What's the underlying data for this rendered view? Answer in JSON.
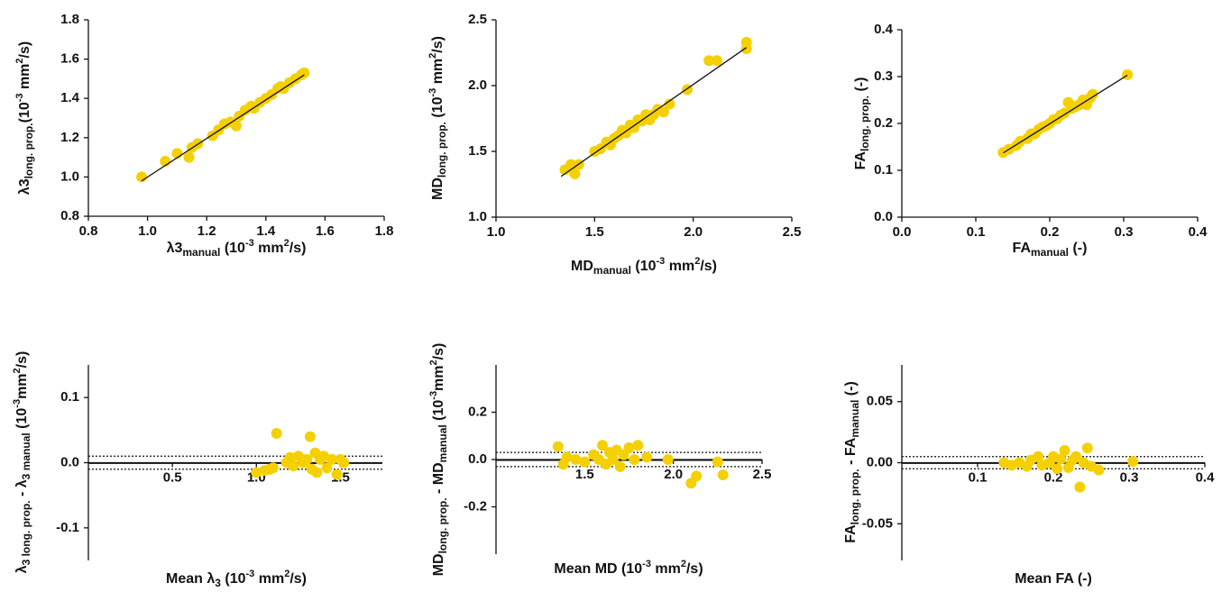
{
  "chart_data": [
    {
      "type": "scatter",
      "color": "#f5d000",
      "x_label": [
        "λ3",
        "manual",
        " (10",
        "-3",
        " mm",
        "2",
        "/s)"
      ],
      "y_label": [
        "λ3",
        "long. prop.",
        "(10",
        "-3",
        " mm",
        "2",
        "/s)"
      ],
      "x": [
        0.98,
        1.06,
        1.1,
        1.14,
        1.15,
        1.17,
        1.22,
        1.24,
        1.26,
        1.28,
        1.3,
        1.31,
        1.33,
        1.35,
        1.36,
        1.38,
        1.4,
        1.42,
        1.44,
        1.45,
        1.46,
        1.48,
        1.5,
        1.52,
        1.53
      ],
      "y": [
        1.0,
        1.08,
        1.12,
        1.1,
        1.15,
        1.17,
        1.21,
        1.24,
        1.27,
        1.28,
        1.26,
        1.31,
        1.34,
        1.36,
        1.35,
        1.38,
        1.4,
        1.42,
        1.45,
        1.46,
        1.45,
        1.48,
        1.5,
        1.52,
        1.53
      ],
      "fit_line": {
        "x": [
          0.98,
          1.53
        ],
        "y": [
          0.98,
          1.52
        ]
      },
      "xlim": [
        0.8,
        1.8
      ],
      "ylim": [
        0.8,
        1.8
      ],
      "xticks": [
        0.8,
        {
          "value": 1,
          "label": "1.0"
        },
        1.2,
        1.4,
        1.6,
        1.8
      ],
      "yticks": [
        0.8,
        {
          "value": 1,
          "label": "1.0"
        },
        1.2,
        1.4,
        1.6,
        1.8
      ]
    },
    {
      "type": "scatter",
      "color": "#f5d000",
      "x_label": [
        "MD",
        "manual",
        " (10",
        "-3",
        " mm",
        "2",
        "/s)"
      ],
      "y_label": [
        "MD",
        "long. prop.",
        "  (10",
        "-3",
        " mm",
        "2",
        "/s)"
      ],
      "x": [
        1.35,
        1.38,
        1.4,
        1.42,
        1.5,
        1.53,
        1.56,
        1.58,
        1.6,
        1.62,
        1.64,
        1.66,
        1.68,
        1.7,
        1.72,
        1.74,
        1.76,
        1.78,
        1.8,
        1.82,
        1.85,
        1.88,
        1.97,
        2.08,
        2.12,
        2.27,
        2.27
      ],
      "y": [
        1.36,
        1.4,
        1.33,
        1.4,
        1.5,
        1.52,
        1.57,
        1.55,
        1.6,
        1.62,
        1.66,
        1.64,
        1.7,
        1.68,
        1.74,
        1.73,
        1.78,
        1.74,
        1.78,
        1.82,
        1.8,
        1.86,
        1.97,
        2.19,
        2.19,
        2.33,
        2.28
      ],
      "fit_line": {
        "x": [
          1.33,
          2.27
        ],
        "y": [
          1.31,
          2.29
        ]
      },
      "xlim": [
        1.0,
        2.5
      ],
      "ylim": [
        1.0,
        2.5
      ],
      "xticks": [
        {
          "value": 1,
          "label": "1.0"
        },
        1.5,
        {
          "value": 2,
          "label": "2.0"
        },
        2.5
      ],
      "yticks": [
        {
          "value": 1,
          "label": "1.0"
        },
        1.5,
        {
          "value": 2,
          "label": "2.0"
        },
        2.5
      ]
    },
    {
      "type": "scatter",
      "color": "#f5d000",
      "x_label": [
        "FA",
        "manual",
        " (-)"
      ],
      "y_label": [
        "FA",
        "long. prop.",
        " (-)"
      ],
      "x": [
        0.137,
        0.145,
        0.155,
        0.16,
        0.17,
        0.175,
        0.18,
        0.185,
        0.19,
        0.195,
        0.2,
        0.205,
        0.21,
        0.215,
        0.22,
        0.225,
        0.23,
        0.235,
        0.24,
        0.245,
        0.25,
        0.255,
        0.258,
        0.305
      ],
      "y": [
        0.138,
        0.145,
        0.153,
        0.162,
        0.168,
        0.178,
        0.178,
        0.187,
        0.192,
        0.195,
        0.2,
        0.208,
        0.21,
        0.218,
        0.222,
        0.245,
        0.232,
        0.236,
        0.24,
        0.25,
        0.24,
        0.255,
        0.262,
        0.304
      ],
      "fit_line": {
        "x": [
          0.137,
          0.305
        ],
        "y": [
          0.137,
          0.303
        ]
      },
      "xlim": [
        0,
        0.4
      ],
      "ylim": [
        0,
        0.4
      ],
      "xticks": [
        {
          "value": 0,
          "label": "0.0"
        },
        0.1,
        0.2,
        0.3,
        0.4
      ],
      "yticks": [
        {
          "value": 0,
          "label": "0.0"
        },
        0.1,
        0.2,
        0.3,
        0.4
      ]
    },
    {
      "type": "scatter",
      "color": "#f5d000",
      "x_axis_position": "zero",
      "x_label": [
        "Mean λ",
        "3",
        " (10",
        "-3",
        " mm",
        "2",
        "/s)"
      ],
      "y_label": [
        "λ",
        "3 long. prop.",
        " - λ",
        "3 manual",
        " (10",
        "-3",
        "mm",
        "2",
        "/s)"
      ],
      "x": [
        1.0,
        1.05,
        1.08,
        1.1,
        1.12,
        1.18,
        1.2,
        1.22,
        1.25,
        1.28,
        1.3,
        1.32,
        1.33,
        1.35,
        1.36,
        1.38,
        1.4,
        1.42,
        1.45,
        1.48,
        1.5,
        1.52
      ],
      "y": [
        -0.015,
        -0.012,
        -0.01,
        -0.008,
        0.045,
        0.0,
        0.008,
        -0.005,
        0.01,
        0.0,
        0.005,
        0.04,
        -0.01,
        0.015,
        -0.015,
        0.005,
        0.01,
        -0.008,
        0.005,
        -0.018,
        0.005,
        0.0
      ],
      "hlines": [
        {
          "value": -0.001,
          "style": "solid"
        },
        {
          "value": 0.01,
          "style": "dotted"
        },
        {
          "value": -0.01,
          "style": "dotted"
        }
      ],
      "xlim": [
        0,
        1.75
      ],
      "ylim": [
        -0.15,
        0.15
      ],
      "xticks": [
        0.5,
        {
          "value": 1,
          "label": "1.0"
        },
        1.5
      ],
      "yticks": [
        0.1,
        {
          "value": 0,
          "label": "0.0"
        },
        -0.1
      ]
    },
    {
      "type": "scatter",
      "color": "#f5d000",
      "x_axis_position": "zero",
      "x_label": [
        "Mean MD (10",
        "-3",
        " mm",
        "2",
        "/s)"
      ],
      "y_label": [
        "MD",
        "long. prop.",
        " - MD",
        "manual",
        " (10",
        "-3",
        "mm",
        "2",
        "/s)"
      ],
      "x": [
        1.35,
        1.38,
        1.4,
        1.45,
        1.5,
        1.55,
        1.58,
        1.6,
        1.62,
        1.64,
        1.66,
        1.68,
        1.7,
        1.72,
        1.75,
        1.78,
        1.8,
        1.85,
        1.97,
        2.1,
        2.13,
        2.25,
        2.28
      ],
      "y": [
        0.055,
        -0.02,
        0.01,
        0.0,
        -0.01,
        0.02,
        0.0,
        0.06,
        -0.02,
        0.03,
        0.0,
        0.04,
        -0.03,
        0.02,
        0.05,
        0.0,
        0.06,
        0.01,
        0.0,
        -0.1,
        -0.07,
        -0.01,
        -0.065
      ],
      "hlines": [
        {
          "value": -0.003,
          "style": "solid"
        },
        {
          "value": 0.03,
          "style": "dotted"
        },
        {
          "value": -0.03,
          "style": "dotted"
        }
      ],
      "xlim": [
        1.0,
        2.5
      ],
      "ylim": [
        -0.4,
        0.4
      ],
      "xticks": [
        1.5,
        {
          "value": 2,
          "label": "2.0"
        },
        2.5
      ],
      "yticks": [
        0.2,
        {
          "value": 0,
          "label": "0.0"
        },
        -0.2
      ]
    },
    {
      "type": "scatter",
      "color": "#f5d000",
      "x_axis_position": "zero",
      "x_label": [
        "Mean FA (-)"
      ],
      "y_label": [
        "FA",
        "long. prop.",
        " - FA",
        "manual",
        " (-)"
      ],
      "x": [
        0.135,
        0.145,
        0.155,
        0.165,
        0.17,
        0.18,
        0.185,
        0.195,
        0.2,
        0.205,
        0.21,
        0.215,
        0.22,
        0.225,
        0.23,
        0.235,
        0.24,
        0.245,
        0.25,
        0.26,
        0.305
      ],
      "y": [
        0.0,
        -0.002,
        0.0,
        -0.003,
        0.002,
        0.005,
        -0.002,
        0.0,
        0.005,
        -0.005,
        0.003,
        0.01,
        -0.004,
        0.002,
        0.005,
        -0.02,
        0.0,
        0.012,
        -0.003,
        -0.006,
        0.001
      ],
      "hlines": [
        {
          "value": -0.0005,
          "style": "solid"
        },
        {
          "value": 0.005,
          "style": "dotted"
        },
        {
          "value": -0.005,
          "style": "dotted"
        }
      ],
      "xlim": [
        0,
        0.4
      ],
      "ylim": [
        -0.08,
        0.08
      ],
      "xticks": [
        0.1,
        0.2,
        0.3,
        0.4
      ],
      "yticks": [
        0.05,
        {
          "value": 0,
          "label": "0.00"
        },
        -0.05
      ]
    }
  ]
}
